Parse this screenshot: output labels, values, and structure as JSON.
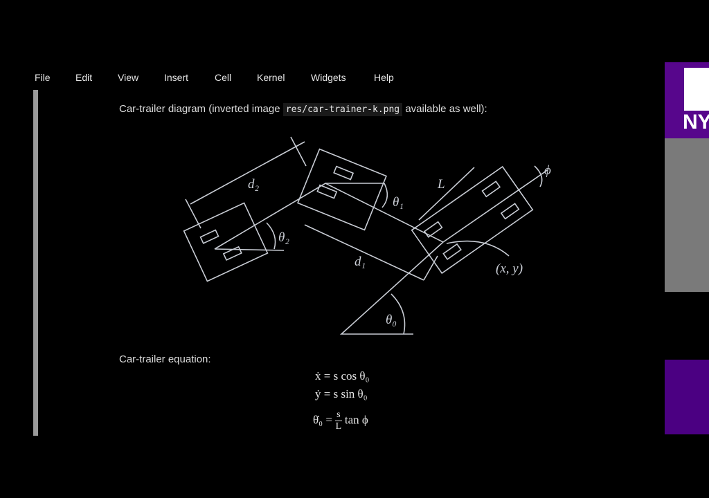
{
  "menu": [
    "File",
    "Edit",
    "View",
    "Insert",
    "Cell",
    "Kernel",
    "Widgets",
    "Help"
  ],
  "cell1": {
    "text_before": "Car-trailer diagram (inverted image",
    "code": "res/car-trainer-k.png",
    "text_after": "available as well):"
  },
  "diagram": {
    "d2": "d₂",
    "theta2": "θ₂",
    "theta1": "θ₁",
    "L": "L",
    "phi": "ϕ",
    "d1": "d₁",
    "xy": "(x, y)",
    "theta0": "θ₀"
  },
  "cell2": {
    "text": "Car-trailer equation:",
    "eq1": "ẋ = s cos θ₀",
    "eq2": "ẏ = s sin θ₀",
    "eq3": {
      "lhs": "θ̇₀ =",
      "num": "s",
      "den": "L",
      "rhs": "tan ϕ"
    }
  },
  "logo": "NY"
}
